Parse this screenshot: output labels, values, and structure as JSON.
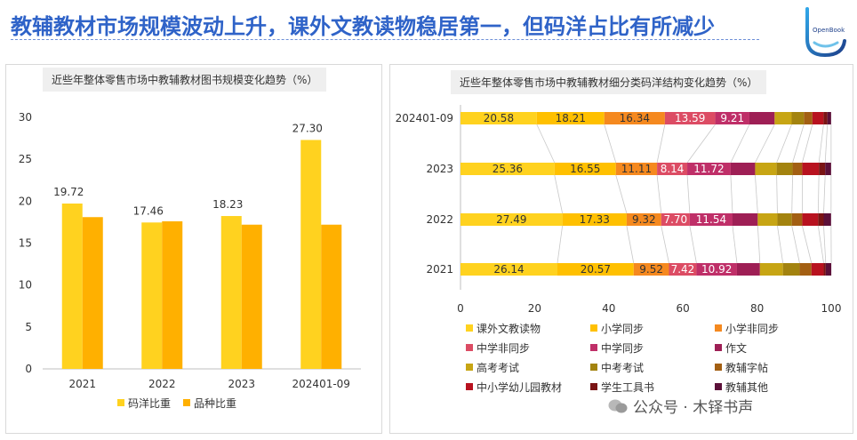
{
  "page_title": "教辅教材市场规模波动上升，课外文教读物稳居第一，但码洋占比有所减少",
  "logo_text": "OpenBook",
  "watermark": "公众号 · 木铎书声",
  "colors": {
    "title": "#2f63c8",
    "yang": "#ffd21f",
    "pin": "#ffb000"
  },
  "chart_data": [
    {
      "type": "bar",
      "title": "近些年整体零售市场中教辅教材图书规模变化趋势（%）",
      "categories": [
        "2021",
        "2022",
        "2023",
        "202401-09"
      ],
      "series": [
        {
          "name": "码洋比重",
          "values": [
            19.72,
            17.46,
            18.23,
            27.3
          ],
          "labels": [
            "19.72",
            "17.46",
            "18.23",
            "27.30"
          ],
          "color": "#ffd21f"
        },
        {
          "name": "品种比重",
          "values": [
            18.1,
            17.6,
            17.2,
            17.2
          ],
          "labels": [
            null,
            null,
            null,
            null
          ],
          "color": "#ffb000"
        }
      ],
      "ylim": [
        0,
        30
      ],
      "yticks": [
        "0",
        "5",
        "10",
        "15",
        "20",
        "25",
        "30"
      ],
      "legend": "bottom"
    },
    {
      "type": "bar",
      "orientation": "horizontal-stacked",
      "title": "近些年整体零售市场中教辅教材细分类码洋结构变化趋势（%）",
      "categories": [
        "202401-09",
        "2023",
        "2022",
        "2021"
      ],
      "xlim": [
        0,
        100
      ],
      "xticks": [
        "0",
        "20",
        "40",
        "60",
        "80",
        "100"
      ],
      "series": [
        {
          "name": "课外文教读物",
          "color": "#ffd21f",
          "values": [
            20.58,
            25.36,
            27.49,
            26.14
          ],
          "labels": [
            "20.58",
            "25.36",
            "27.49",
            "26.14"
          ]
        },
        {
          "name": "小学同步",
          "color": "#ffc000",
          "values": [
            18.21,
            16.55,
            17.33,
            20.57
          ],
          "labels": [
            "18.21",
            "16.55",
            "17.33",
            "20.57"
          ]
        },
        {
          "name": "小学非同步",
          "color": "#f5891f",
          "values": [
            16.34,
            11.11,
            9.32,
            9.52
          ],
          "labels": [
            "16.34",
            "11.11",
            "9.32",
            "9.52"
          ]
        },
        {
          "name": "中学非同步",
          "color": "#dc4c64",
          "values": [
            13.59,
            8.14,
            7.7,
            7.42
          ],
          "labels": [
            "13.59",
            "8.14",
            "7.70",
            "7.42"
          ]
        },
        {
          "name": "中学同步",
          "color": "#bf2f68",
          "values": [
            9.21,
            11.72,
            11.54,
            10.92
          ],
          "labels": [
            "9.21",
            "11.72",
            "11.54",
            "10.92"
          ]
        },
        {
          "name": "作文",
          "color": "#9e1f55",
          "values": [
            6.8,
            6.6,
            6.8,
            6.2
          ],
          "labels": [
            null,
            null,
            null,
            null
          ]
        },
        {
          "name": "高考考试",
          "color": "#c7a514",
          "values": [
            4.6,
            5.8,
            5.3,
            6.2
          ],
          "labels": [
            null,
            null,
            null,
            null
          ]
        },
        {
          "name": "中考考试",
          "color": "#a3830f",
          "values": [
            3.3,
            4.3,
            3.9,
            4.5
          ],
          "labels": [
            null,
            null,
            null,
            null
          ]
        },
        {
          "name": "教辅字帖",
          "color": "#a35f12",
          "values": [
            2.3,
            2.6,
            2.8,
            3.2
          ],
          "labels": [
            null,
            null,
            null,
            null
          ]
        },
        {
          "name": "中小学幼儿园教材",
          "color": "#b8121f",
          "values": [
            3.0,
            4.5,
            4.3,
            3.3
          ],
          "labels": [
            null,
            null,
            null,
            null
          ]
        },
        {
          "name": "学生工具书",
          "color": "#7a1414",
          "values": [
            1.04,
            1.69,
            1.48,
            0.55
          ],
          "labels": [
            null,
            null,
            null,
            null
          ]
        },
        {
          "name": "教辅其他",
          "color": "#5c1039",
          "values": [
            1.0,
            1.6,
            2.0,
            1.5
          ],
          "labels": [
            null,
            null,
            null,
            null
          ]
        }
      ],
      "legend": "bottom"
    }
  ]
}
